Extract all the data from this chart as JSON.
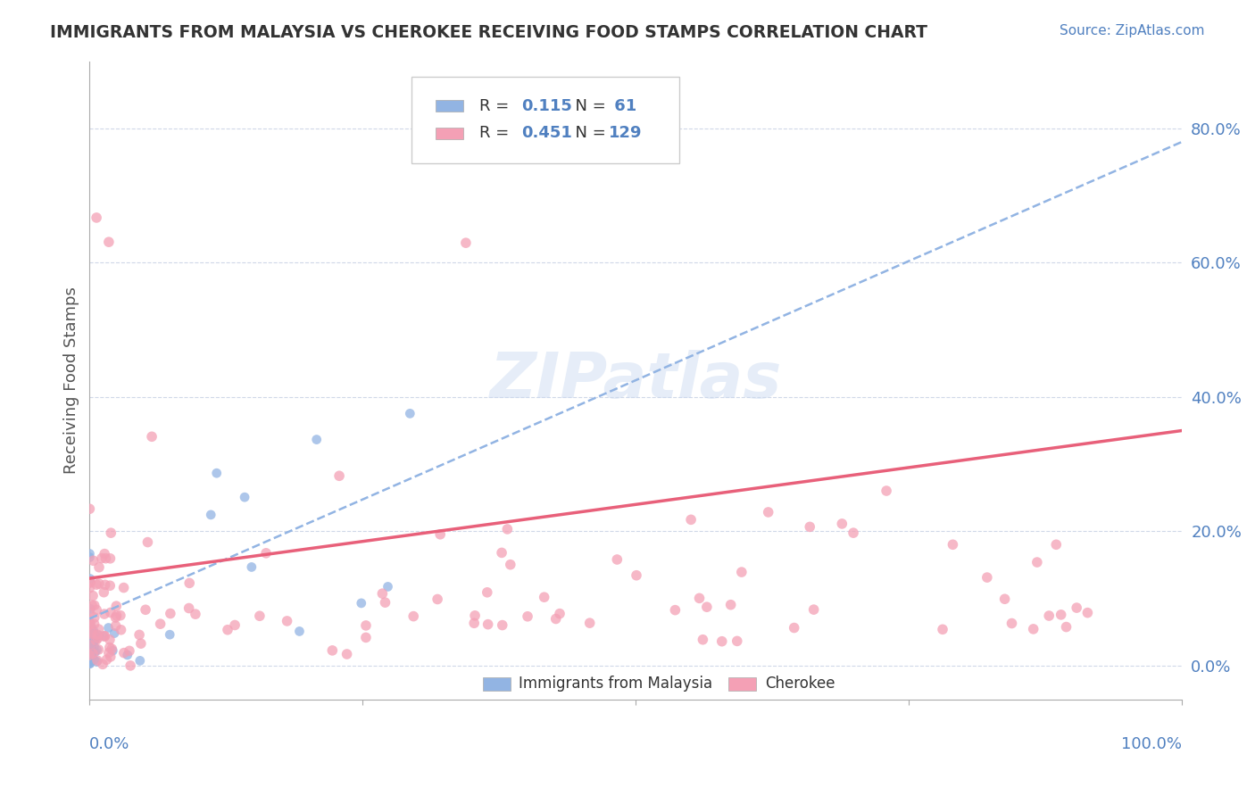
{
  "title": "IMMIGRANTS FROM MALAYSIA VS CHEROKEE RECEIVING FOOD STAMPS CORRELATION CHART",
  "source": "Source: ZipAtlas.com",
  "ylabel": "Receiving Food Stamps",
  "ytick_labels": [
    "0.0%",
    "20.0%",
    "40.0%",
    "60.0%",
    "80.0%"
  ],
  "ytick_values": [
    0.0,
    0.2,
    0.4,
    0.6,
    0.8
  ],
  "xlim": [
    0,
    1.0
  ],
  "ylim": [
    -0.05,
    0.9
  ],
  "blue_R": 0.115,
  "blue_N": 61,
  "pink_R": 0.451,
  "pink_N": 129,
  "blue_color": "#92b4e3",
  "pink_color": "#f4a0b5",
  "trend_blue_color": "#92b4e3",
  "trend_pink_color": "#e8607a",
  "legend_label_blue": "Immigrants from Malaysia",
  "legend_label_pink": "Cherokee",
  "watermark": "ZIPatlas",
  "background_color": "#ffffff",
  "grid_color": "#d0d8e8",
  "title_color": "#333333",
  "axis_label_color": "#5080c0",
  "blue_seed": 42,
  "pink_seed": 123,
  "blue_trend_intercept": 0.07,
  "blue_trend_slope": 0.71,
  "pink_trend_intercept": 0.13,
  "pink_trend_slope": 0.22
}
